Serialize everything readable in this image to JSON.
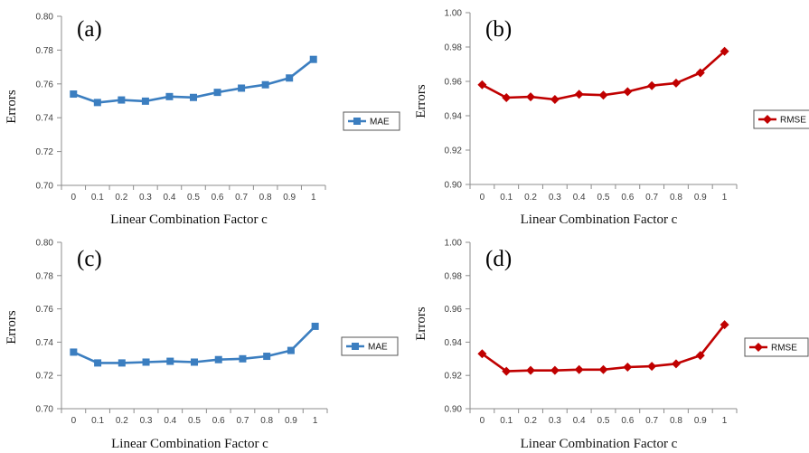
{
  "chart_data": [
    {
      "type": "line",
      "panel_label": "(a)",
      "categories": [
        "0",
        "0.1",
        "0.2",
        "0.3",
        "0.4",
        "0.5",
        "0.6",
        "0.7",
        "0.8",
        "0.9",
        "1"
      ],
      "series": [
        {
          "name": "MAE",
          "color": "#3B7EC0",
          "marker": "square",
          "values": [
            0.754,
            0.749,
            0.7505,
            0.7498,
            0.7525,
            0.752,
            0.755,
            0.7575,
            0.7595,
            0.7635,
            0.7745
          ]
        }
      ],
      "ylabel": "Errors",
      "xlabel": "Linear Combination Factor c",
      "ylim": [
        0.7,
        0.8
      ],
      "yticks": [
        "0.70",
        "0.72",
        "0.74",
        "0.76",
        "0.78",
        "0.80"
      ],
      "legend_position": "right"
    },
    {
      "type": "line",
      "panel_label": "(b)",
      "categories": [
        "0",
        "0.1",
        "0.2",
        "0.3",
        "0.4",
        "0.5",
        "0.6",
        "0.7",
        "0.8",
        "0.9",
        "1"
      ],
      "series": [
        {
          "name": "RMSE",
          "color": "#C00000",
          "marker": "diamond",
          "values": [
            0.958,
            0.9505,
            0.951,
            0.9495,
            0.9525,
            0.952,
            0.954,
            0.9575,
            0.959,
            0.965,
            0.9775
          ]
        }
      ],
      "ylabel": "Errors",
      "xlabel": "Linear Combination Factor c",
      "ylim": [
        0.9,
        1.0
      ],
      "yticks": [
        "0.90",
        "0.92",
        "0.94",
        "0.96",
        "0.98",
        "1.00"
      ],
      "legend_position": "right"
    },
    {
      "type": "line",
      "panel_label": "(c)",
      "categories": [
        "0",
        "0.1",
        "0.2",
        "0.3",
        "0.4",
        "0.5",
        "0.6",
        "0.7",
        "0.8",
        "0.9",
        "1"
      ],
      "series": [
        {
          "name": "MAE",
          "color": "#3B7EC0",
          "marker": "square",
          "values": [
            0.734,
            0.7275,
            0.7275,
            0.728,
            0.7285,
            0.728,
            0.7295,
            0.73,
            0.7315,
            0.735,
            0.7495
          ]
        }
      ],
      "ylabel": "Errors",
      "xlabel": "Linear Combination Factor c",
      "ylim": [
        0.7,
        0.8
      ],
      "yticks": [
        "0.70",
        "0.72",
        "0.74",
        "0.76",
        "0.78",
        "0.80"
      ],
      "legend_position": "right"
    },
    {
      "type": "line",
      "panel_label": "(d)",
      "categories": [
        "0",
        "0.1",
        "0.2",
        "0.3",
        "0.4",
        "0.5",
        "0.6",
        "0.7",
        "0.8",
        "0.9",
        "1"
      ],
      "series": [
        {
          "name": "RMSE",
          "color": "#C00000",
          "marker": "diamond",
          "values": [
            0.933,
            0.9225,
            0.923,
            0.923,
            0.9235,
            0.9235,
            0.925,
            0.9255,
            0.927,
            0.932,
            0.9505
          ]
        }
      ],
      "ylabel": "Errors",
      "xlabel": "Linear Combination Factor c",
      "ylim": [
        0.9,
        1.0
      ],
      "yticks": [
        "0.90",
        "0.92",
        "0.94",
        "0.96",
        "0.98",
        "1.00"
      ],
      "legend_position": "right"
    }
  ]
}
